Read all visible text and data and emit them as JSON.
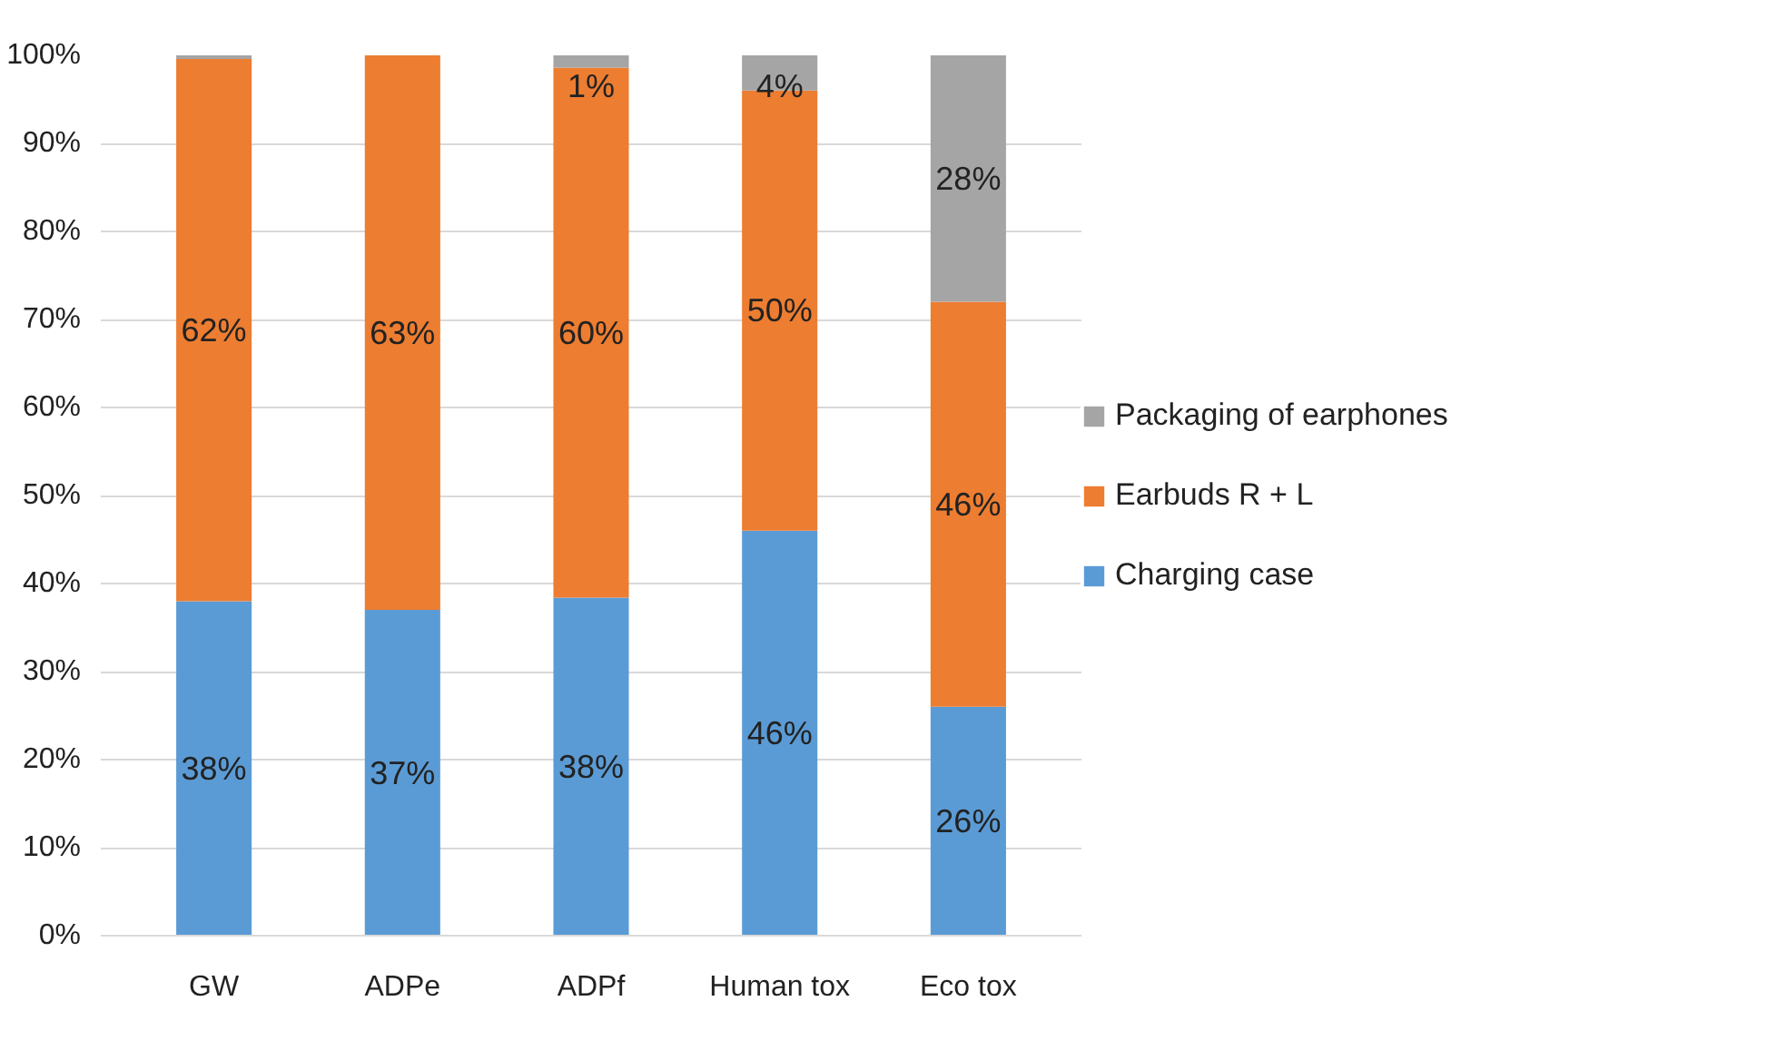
{
  "chart_data": {
    "type": "bar",
    "stacked": true,
    "categories": [
      "GW",
      "ADPe",
      "ADPf",
      "Human tox",
      "Eco tox"
    ],
    "series": [
      {
        "name": "Charging case",
        "color": "#5b9bd5",
        "values": [
          38,
          37,
          38.4,
          46,
          26
        ],
        "value_labels": [
          "38%",
          "37%",
          "38%",
          "46%",
          "26%"
        ]
      },
      {
        "name": "Earbuds R + L",
        "color": "#ed7d31",
        "values": [
          61.6,
          63,
          60.2,
          50,
          46
        ],
        "value_labels": [
          "62%",
          "63%",
          "60%",
          "50%",
          "46%"
        ]
      },
      {
        "name": "Packaging of earphones",
        "color": "#a5a5a5",
        "values": [
          0.4,
          0,
          1.4,
          4,
          28
        ],
        "value_labels": [
          null,
          null,
          "1%",
          "4%",
          "28%"
        ]
      }
    ],
    "ylim": [
      0,
      100
    ],
    "yticks": [
      {
        "value": 0,
        "label": "0%"
      },
      {
        "value": 10,
        "label": "10%"
      },
      {
        "value": 20,
        "label": "20%"
      },
      {
        "value": 30,
        "label": "30%"
      },
      {
        "value": 40,
        "label": "40%"
      },
      {
        "value": 50,
        "label": "50%"
      },
      {
        "value": 60,
        "label": "60%"
      },
      {
        "value": 70,
        "label": "70%"
      },
      {
        "value": 80,
        "label": "80%"
      },
      {
        "value": 90,
        "label": "90%"
      },
      {
        "value": 100,
        "label": "100%"
      }
    ],
    "grid": "y",
    "legend": "right"
  }
}
